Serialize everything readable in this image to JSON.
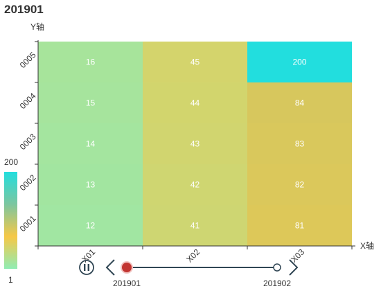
{
  "title": "201901",
  "chart_data": {
    "type": "heatmap",
    "title": "201901",
    "xlabel": "X轴",
    "ylabel": "Y轴",
    "x_categories": [
      "X01",
      "X02",
      "X03"
    ],
    "y_categories": [
      "0001",
      "0002",
      "0003",
      "0004",
      "0005"
    ],
    "values": [
      {
        "x": "X01",
        "y": "0001",
        "value": 12
      },
      {
        "x": "X01",
        "y": "0002",
        "value": 13
      },
      {
        "x": "X01",
        "y": "0003",
        "value": 14
      },
      {
        "x": "X01",
        "y": "0004",
        "value": 15
      },
      {
        "x": "X01",
        "y": "0005",
        "value": 16
      },
      {
        "x": "X02",
        "y": "0001",
        "value": 41
      },
      {
        "x": "X02",
        "y": "0002",
        "value": 42
      },
      {
        "x": "X02",
        "y": "0003",
        "value": 43
      },
      {
        "x": "X02",
        "y": "0004",
        "value": 44
      },
      {
        "x": "X02",
        "y": "0005",
        "value": 45
      },
      {
        "x": "X03",
        "y": "0001",
        "value": 81
      },
      {
        "x": "X03",
        "y": "0002",
        "value": 82
      },
      {
        "x": "X03",
        "y": "0003",
        "value": 83
      },
      {
        "x": "X03",
        "y": "0004",
        "value": 84
      },
      {
        "x": "X03",
        "y": "0005",
        "value": 200
      }
    ],
    "visual_map": {
      "min": 1,
      "max": 200,
      "min_label": "1",
      "max_label": "200",
      "colors": [
        "#90ecb4",
        "#f6c847",
        "#7cc6a0",
        "#22dede"
      ]
    },
    "timeline": {
      "periods": [
        "201901",
        "201902"
      ],
      "current_index": 0,
      "play_icon": "pause-icon",
      "prev_icon": "chevron-left-icon",
      "next_icon": "chevron-right-icon",
      "line_color": "#304654",
      "active_color": "#c23531"
    }
  }
}
